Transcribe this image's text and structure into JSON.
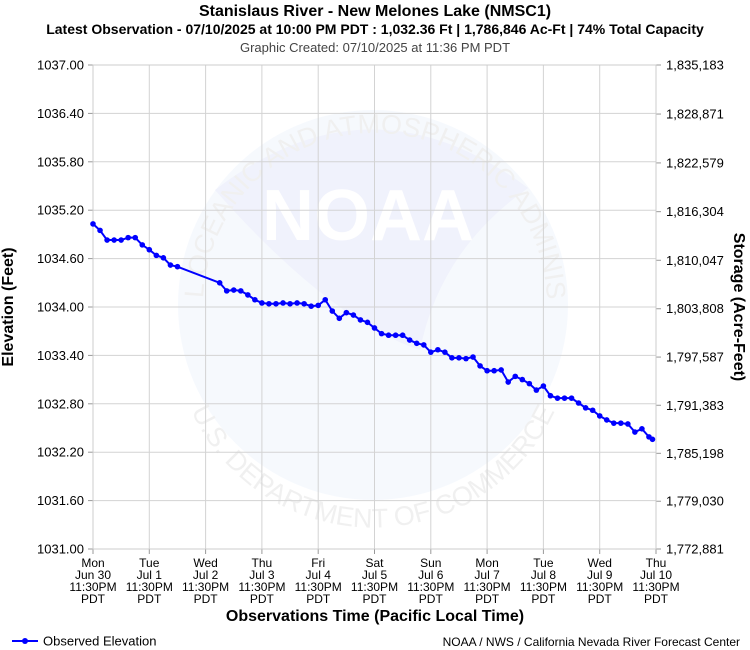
{
  "chart_data": {
    "type": "line",
    "title": "Stanislaus River - New Melones Lake (NMSC1)",
    "subtitle": "Latest Observation - 07/10/2025 at 10:00 PM PDT : 1,032.36 Ft | 1,786,846 Ac-Ft | 74% Total Capacity",
    "credit": "Graphic Created: 07/10/2025 at 11:36 PM PDT",
    "xlabel": "Observations Time (Pacific Local Time)",
    "ylabel": "Elevation (Feet)",
    "y2label": "Storage (Acre-Feet)",
    "source": "NOAA / NWS / California Nevada River Forecast Center",
    "watermark": {
      "logo": "NOAA",
      "top": "NATIONAL OCEANIC AND ATMOSPHERIC ADMINISTRATION",
      "bottom": "U.S. DEPARTMENT OF COMMERCE"
    },
    "grid": true,
    "legend": "lower left",
    "xlim": [
      "Jun 30 11:30PM",
      "Jul 10 11:30PM"
    ],
    "xticks": [
      {
        "value": "Jun 30 11:30PM",
        "label": [
          "Mon",
          "Jun 30",
          "11:30PM",
          "PDT"
        ]
      },
      {
        "value": "Jul 1 11:30PM",
        "label": [
          "Tue",
          "Jul 1",
          "11:30PM",
          "PDT"
        ]
      },
      {
        "value": "Jul 2 11:30PM",
        "label": [
          "Wed",
          "Jul 2",
          "11:30PM",
          "PDT"
        ]
      },
      {
        "value": "Jul 3 11:30PM",
        "label": [
          "Thu",
          "Jul 3",
          "11:30PM",
          "PDT"
        ]
      },
      {
        "value": "Jul 4 11:30PM",
        "label": [
          "Fri",
          "Jul 4",
          "11:30PM",
          "PDT"
        ]
      },
      {
        "value": "Jul 5 11:30PM",
        "label": [
          "Sat",
          "Jul 5",
          "11:30PM",
          "PDT"
        ]
      },
      {
        "value": "Jul 6 11:30PM",
        "label": [
          "Sun",
          "Jul 6",
          "11:30PM",
          "PDT"
        ]
      },
      {
        "value": "Jul 7 11:30PM",
        "label": [
          "Mon",
          "Jul 7",
          "11:30PM",
          "PDT"
        ]
      },
      {
        "value": "Jul 8 11:30PM",
        "label": [
          "Tue",
          "Jul 8",
          "11:30PM",
          "PDT"
        ]
      },
      {
        "value": "Jul 9 11:30PM",
        "label": [
          "Wed",
          "Jul 9",
          "11:30PM",
          "PDT"
        ]
      },
      {
        "value": "Jul 10 11:30PM",
        "label": [
          "Thu",
          "Jul 10",
          "11:30PM",
          "PDT"
        ]
      }
    ],
    "ylim": [
      1031,
      1037
    ],
    "yticks": [
      {
        "value": 1037,
        "label": "1037.00"
      },
      {
        "value": 1036.4,
        "label": "1036.40"
      },
      {
        "value": 1035.8,
        "label": "1035.80"
      },
      {
        "value": 1035.2,
        "label": "1035.20"
      },
      {
        "value": 1034.6,
        "label": "1034.60"
      },
      {
        "value": 1034,
        "label": "1034.00"
      },
      {
        "value": 1033.4,
        "label": "1033.40"
      },
      {
        "value": 1032.8,
        "label": "1032.80"
      },
      {
        "value": 1032.2,
        "label": "1032.20"
      },
      {
        "value": 1031.6,
        "label": "1031.60"
      },
      {
        "value": 1031,
        "label": "1031.00"
      }
    ],
    "y2lim": [
      1772881,
      1835183
    ],
    "y2ticks": [
      {
        "value": 1835183,
        "label": "1,835,183"
      },
      {
        "value": 1828871,
        "label": "1,828,871"
      },
      {
        "value": 1822579,
        "label": "1,822,579"
      },
      {
        "value": 1816304,
        "label": "1,816,304"
      },
      {
        "value": 1810047,
        "label": "1,810,047"
      },
      {
        "value": 1803808,
        "label": "1,803,808"
      },
      {
        "value": 1797587,
        "label": "1,797,587"
      },
      {
        "value": 1791383,
        "label": "1,791,383"
      },
      {
        "value": 1785198,
        "label": "1,785,198"
      },
      {
        "value": 1779030,
        "label": "1,779,030"
      },
      {
        "value": 1772881,
        "label": "1,772,881"
      }
    ],
    "x": [
      "Jun 30 11:30PM",
      "Jul 1 2:30AM",
      "Jul 1 5:30AM",
      "Jul 1 8:30AM",
      "Jul 1 11:30AM",
      "Jul 1 2:30PM",
      "Jul 1 5:30PM",
      "Jul 1 8:30PM",
      "Jul 1 11:30PM",
      "Jul 2 2:30AM",
      "Jul 2 5:30AM",
      "Jul 2 8:30AM",
      "Jul 2 11:30AM",
      "Jul 3 5:30AM",
      "Jul 3 8:30AM",
      "Jul 3 11:30AM",
      "Jul 3 2:30PM",
      "Jul 3 5:30PM",
      "Jul 3 8:30PM",
      "Jul 3 11:30PM",
      "Jul 4 2:30AM",
      "Jul 4 5:30AM",
      "Jul 4 8:30AM",
      "Jul 4 11:30AM",
      "Jul 4 2:30PM",
      "Jul 4 5:30PM",
      "Jul 4 8:30PM",
      "Jul 4 11:30PM",
      "Jul 5 2:30AM",
      "Jul 5 5:30AM",
      "Jul 5 8:30AM",
      "Jul 5 11:30AM",
      "Jul 5 2:30PM",
      "Jul 5 5:30PM",
      "Jul 5 8:30PM",
      "Jul 5 11:30PM",
      "Jul 6 2:30AM",
      "Jul 6 5:30AM",
      "Jul 6 8:30AM",
      "Jul 6 11:30AM",
      "Jul 6 2:30PM",
      "Jul 6 5:30PM",
      "Jul 6 8:30PM",
      "Jul 6 11:30PM",
      "Jul 7 2:30AM",
      "Jul 7 5:30AM",
      "Jul 7 8:30AM",
      "Jul 7 11:30AM",
      "Jul 7 2:30PM",
      "Jul 7 5:30PM",
      "Jul 7 8:30PM",
      "Jul 7 11:30PM",
      "Jul 8 2:30AM",
      "Jul 8 5:30AM",
      "Jul 8 8:30AM",
      "Jul 8 11:30AM",
      "Jul 8 2:30PM",
      "Jul 8 5:30PM",
      "Jul 8 8:30PM",
      "Jul 8 11:30PM",
      "Jul 9 2:30AM",
      "Jul 9 5:30AM",
      "Jul 9 8:30AM",
      "Jul 9 11:30AM",
      "Jul 9 2:30PM",
      "Jul 9 5:30PM",
      "Jul 9 8:30PM",
      "Jul 9 11:30PM",
      "Jul 10 2:30AM",
      "Jul 10 5:30AM",
      "Jul 10 8:30AM",
      "Jul 10 11:30AM",
      "Jul 10 2:30PM",
      "Jul 10 5:30PM",
      "Jul 10 8:30PM",
      "Jul 10 10:00PM"
    ],
    "series": [
      {
        "name": "Observed Elevation",
        "color": "#0000ff",
        "values": [
          1035.03,
          1034.95,
          1034.83,
          1034.83,
          1034.83,
          1034.86,
          1034.86,
          1034.77,
          1034.71,
          1034.64,
          1034.61,
          1034.52,
          1034.5,
          1034.3,
          1034.2,
          1034.21,
          1034.2,
          1034.15,
          1034.09,
          1034.05,
          1034.04,
          1034.04,
          1034.05,
          1034.04,
          1034.05,
          1034.04,
          1034.01,
          1034.02,
          1034.09,
          1033.95,
          1033.86,
          1033.93,
          1033.9,
          1033.84,
          1033.81,
          1033.74,
          1033.67,
          1033.65,
          1033.65,
          1033.65,
          1033.59,
          1033.55,
          1033.53,
          1033.44,
          1033.47,
          1033.44,
          1033.37,
          1033.37,
          1033.36,
          1033.38,
          1033.27,
          1033.21,
          1033.21,
          1033.22,
          1033.07,
          1033.14,
          1033.1,
          1033.05,
          1032.97,
          1033.02,
          1032.9,
          1032.87,
          1032.87,
          1032.87,
          1032.81,
          1032.75,
          1032.72,
          1032.65,
          1032.6,
          1032.56,
          1032.56,
          1032.55,
          1032.45,
          1032.49,
          1032.39,
          1032.36
        ]
      }
    ]
  }
}
